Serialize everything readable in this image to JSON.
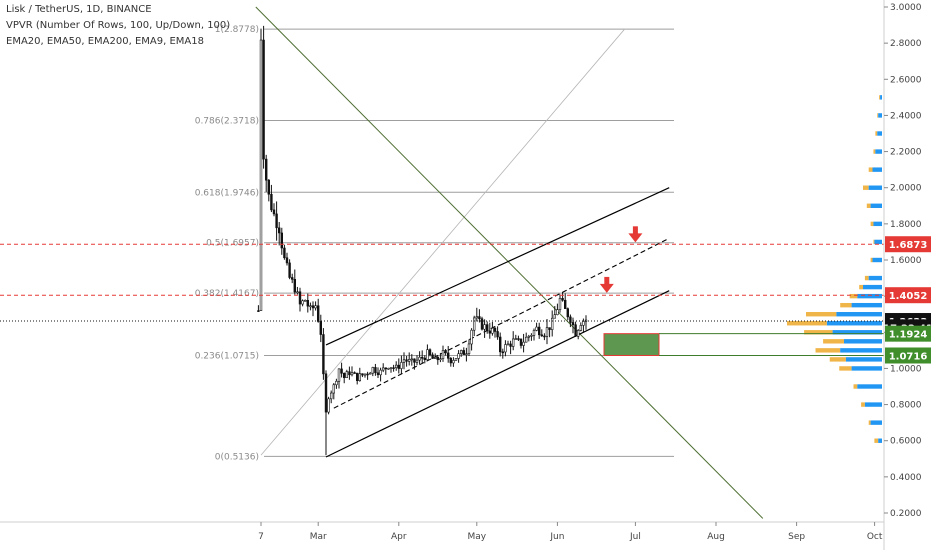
{
  "header": {
    "line1": "Lisk / TetherUS, 1D, BINANCE",
    "line2": "VPVR (Number Of Rows, 100, Up/Down, 100)",
    "line3": "EMA20, EMA50, EMA200, EMA9, EMA18"
  },
  "colors": {
    "background": "#ffffff",
    "fib_line": "#9e9e9e",
    "trend_red": "#e53935",
    "vp_up": "#2196f3",
    "vp_down": "#f0b548",
    "box_fill": "#4c8c3c",
    "diag_green": "#4e6e32",
    "channel": "#000000"
  },
  "chart_data": {
    "type": "candlestick",
    "symbol": "Lisk / TetherUS",
    "interval": "1D",
    "exchange": "BINANCE",
    "y_axis": {
      "ylim": [
        0.15,
        3.02
      ],
      "ticks": [
        "3.0000",
        "2.8000",
        "2.6000",
        "2.4000",
        "2.2000",
        "2.0000",
        "1.8000",
        "1.6000",
        "1.4000",
        "1.2000",
        "1.0000",
        "0.8000",
        "0.6000",
        "0.4000",
        "0.2000"
      ],
      "tick_values": [
        3.0,
        2.8,
        2.6,
        2.4,
        2.2,
        2.0,
        1.8,
        1.6,
        1.4,
        1.2,
        1.0,
        0.8,
        0.6,
        0.4,
        0.2
      ]
    },
    "x_axis": {
      "ticks": [
        "7",
        "Mar",
        "Apr",
        "May",
        "Jun",
        "Jul",
        "Aug",
        "Sep",
        "Oct"
      ],
      "tick_days": [
        6,
        28,
        59,
        89,
        120,
        150,
        181,
        212,
        242
      ]
    },
    "fib_levels": [
      {
        "label": "1(2.8778)",
        "value": 2.8778
      },
      {
        "label": "0.786(2.3718)",
        "value": 2.3718
      },
      {
        "label": "0.618(1.9746)",
        "value": 1.9746
      },
      {
        "label": "0.5(1.6957)",
        "value": 1.6957
      },
      {
        "label": "0.382(1.4167)",
        "value": 1.4167
      },
      {
        "label": "0.236(1.0715)",
        "value": 1.0715
      },
      {
        "label": "0(0.5136)",
        "value": 0.5136
      }
    ],
    "price_tags": [
      {
        "label": "1.6873",
        "value": 1.6873,
        "role": "resistance"
      },
      {
        "label": "1.4052",
        "value": 1.4052,
        "role": "resistance"
      },
      {
        "label": "1.2623",
        "value": 1.2623,
        "role": "last_price"
      },
      {
        "label": "17:22:41",
        "value": 1.2275,
        "role": "countdown"
      },
      {
        "label": "1.1924",
        "value": 1.1924,
        "role": "support"
      },
      {
        "label": "1.0716",
        "value": 1.0716,
        "role": "support"
      }
    ],
    "price_path": [
      [
        5,
        1.32
      ],
      [
        6,
        2.85
      ],
      [
        7,
        2.2
      ],
      [
        8,
        2.05
      ],
      [
        9,
        1.95
      ],
      [
        11,
        1.85
      ],
      [
        13,
        1.78
      ],
      [
        15,
        1.6
      ],
      [
        17,
        1.5
      ],
      [
        19,
        1.45
      ],
      [
        21,
        1.35
      ],
      [
        23,
        1.38
      ],
      [
        25,
        1.32
      ],
      [
        27,
        1.35
      ],
      [
        29,
        1.2
      ],
      [
        30,
        0.95
      ],
      [
        31,
        0.75
      ],
      [
        32,
        0.85
      ],
      [
        34,
        0.9
      ],
      [
        36,
        1.0
      ],
      [
        38,
        0.95
      ],
      [
        40,
        0.98
      ],
      [
        43,
        0.95
      ],
      [
        46,
        0.97
      ],
      [
        49,
        1.0
      ],
      [
        52,
        0.98
      ],
      [
        55,
        1.02
      ],
      [
        58,
        1.0
      ],
      [
        61,
        1.05
      ],
      [
        64,
        1.03
      ],
      [
        67,
        1.05
      ],
      [
        70,
        1.08
      ],
      [
        73,
        1.04
      ],
      [
        76,
        1.08
      ],
      [
        79,
        1.05
      ],
      [
        82,
        1.07
      ],
      [
        85,
        1.1
      ],
      [
        88,
        1.28
      ],
      [
        90,
        1.25
      ],
      [
        93,
        1.22
      ],
      [
        96,
        1.2
      ],
      [
        98,
        1.1
      ],
      [
        100,
        1.12
      ],
      [
        103,
        1.15
      ],
      [
        106,
        1.14
      ],
      [
        109,
        1.18
      ],
      [
        112,
        1.22
      ],
      [
        115,
        1.2
      ],
      [
        118,
        1.25
      ],
      [
        121,
        1.38
      ],
      [
        123,
        1.32
      ],
      [
        125,
        1.28
      ],
      [
        127,
        1.2
      ],
      [
        129,
        1.26
      ],
      [
        131,
        1.27
      ]
    ],
    "drawings": {
      "channel_upper": [
        [
          31,
          1.13
        ],
        [
          163,
          2.0
        ]
      ],
      "channel_mid": [
        [
          34,
          0.78
        ],
        [
          163,
          1.72
        ]
      ],
      "channel_lower": [
        [
          31,
          0.51
        ],
        [
          163,
          1.43
        ]
      ],
      "diagonal_down": [
        [
          4,
          3.0
        ],
        [
          199,
          0.17
        ]
      ],
      "fib_anchor": [
        [
          6,
          0.52
        ],
        [
          146,
          2.88
        ]
      ],
      "support_box": [
        1.1924,
        1.0716
      ],
      "arrows": [
        {
          "day": 150,
          "value": 1.72
        },
        {
          "day": 139,
          "value": 1.44
        }
      ]
    },
    "volume_profile_shape": [
      [
        0.6,
        4,
        8
      ],
      [
        0.7,
        12,
        14
      ],
      [
        0.8,
        18,
        22
      ],
      [
        0.9,
        26,
        30
      ],
      [
        1.0,
        32,
        45
      ],
      [
        1.05,
        38,
        55
      ],
      [
        1.1,
        44,
        70
      ],
      [
        1.15,
        40,
        62
      ],
      [
        1.2,
        52,
        82
      ],
      [
        1.25,
        58,
        100
      ],
      [
        1.3,
        48,
        80
      ],
      [
        1.35,
        32,
        44
      ],
      [
        1.4,
        26,
        34
      ],
      [
        1.45,
        20,
        24
      ],
      [
        1.5,
        14,
        18
      ],
      [
        1.6,
        10,
        12
      ],
      [
        1.7,
        8,
        9
      ],
      [
        1.8,
        9,
        12
      ],
      [
        1.9,
        12,
        16
      ],
      [
        2.0,
        14,
        20
      ],
      [
        2.1,
        10,
        14
      ],
      [
        2.2,
        7,
        9
      ],
      [
        2.3,
        5,
        7
      ],
      [
        2.4,
        4,
        5
      ],
      [
        2.5,
        2,
        3
      ]
    ]
  }
}
